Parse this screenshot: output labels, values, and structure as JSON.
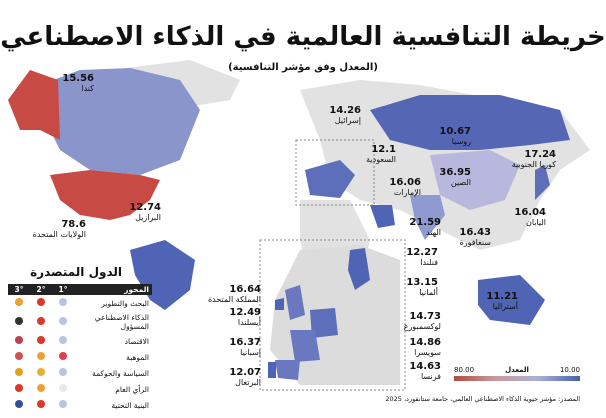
{
  "title": "خريطة التنافسية العالمية في الذكاء الاصطناعي",
  "subtitle": "(المعدل وفق مؤشر التنافسية)",
  "countries": [
    {
      "name": "كندا",
      "value": "15.56"
    },
    {
      "name": "الولايات المتحدة",
      "value": "78.6"
    },
    {
      "name": "البرازيل",
      "value": "12.74"
    },
    {
      "name": "إسرائيل",
      "value": "14.26"
    },
    {
      "name": "روسيا",
      "value": "10.67"
    },
    {
      "name": "السعودية",
      "value": "12.1"
    },
    {
      "name": "كوريا الجنوبية",
      "value": "17.24"
    },
    {
      "name": "الإمارات",
      "value": "16.06"
    },
    {
      "name": "الصين",
      "value": "36.95"
    },
    {
      "name": "اليابان",
      "value": "16.04"
    },
    {
      "name": "الهند",
      "value": "21.59"
    },
    {
      "name": "سنغافورة",
      "value": "16.43"
    },
    {
      "name": "أستراليا",
      "value": "11.21"
    },
    {
      "name": "فنلندا",
      "value": "12.27"
    },
    {
      "name": "المملكة المتحدة",
      "value": "16.64"
    },
    {
      "name": "ألمانيا",
      "value": "13.15"
    },
    {
      "name": "أيسلندا",
      "value": "12.49"
    },
    {
      "name": "لوكسمبورغ",
      "value": "14.73"
    },
    {
      "name": "إسبانيا",
      "value": "16.37"
    },
    {
      "name": "سويسرا",
      "value": "14.86"
    },
    {
      "name": "البرتغال",
      "value": "12.07"
    },
    {
      "name": "فرنسا",
      "value": "14.63"
    }
  ],
  "leaders": {
    "title": "الدول المتصدرة",
    "headers": {
      "axis": "المحور",
      "first": "1°",
      "second": "2°",
      "third": "3°"
    },
    "rows": [
      {
        "axis": "البحث والتطوير",
        "flags": [
          "#b8c4e0",
          "#d9382b",
          "#f0a030"
        ]
      },
      {
        "axis": "الذكاء الاصطناعي المسؤول",
        "flags": [
          "#b8c4e0",
          "#d9382b",
          "#333333"
        ]
      },
      {
        "axis": "الاقتصاد",
        "flags": [
          "#b8c4e0",
          "#d9382b",
          "#c04050"
        ]
      },
      {
        "axis": "الموهبة",
        "flags": [
          "#e0404a",
          "#f0a030",
          "#d05050"
        ]
      },
      {
        "axis": "السياسة والحوكمة",
        "flags": [
          "#b8c4e0",
          "#e8b030",
          "#e0a020"
        ]
      },
      {
        "axis": "الرأي العام",
        "flags": [
          "#e8e8f0",
          "#f0a030",
          "#d9382b"
        ]
      },
      {
        "axis": "البنية التحتية",
        "flags": [
          "#b8c4e0",
          "#d9382b",
          "#3050a0"
        ]
      }
    ]
  },
  "legend": {
    "label": "المعدل",
    "min": "80.00",
    "max": "10.00",
    "colors": [
      "#b44a3e",
      "#4a5fae"
    ]
  },
  "source": "المصدر: مؤشر حيوية الذكاء الاصطناعي العالمي، جامعة ستانفورد، 2025"
}
